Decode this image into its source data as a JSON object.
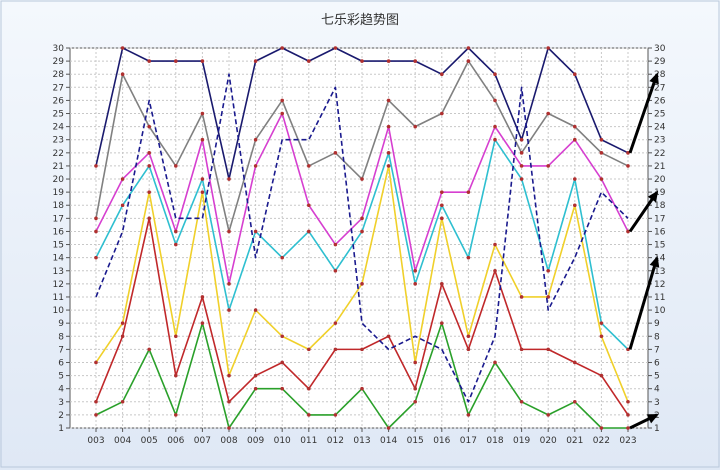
{
  "chart_data": {
    "type": "line",
    "title": "七乐彩趋势图",
    "xlabel": "",
    "ylabel": "",
    "categories": [
      "003",
      "004",
      "005",
      "006",
      "007",
      "008",
      "009",
      "010",
      "011",
      "012",
      "013",
      "014",
      "015",
      "016",
      "017",
      "018",
      "019",
      "020",
      "021",
      "022",
      "023"
    ],
    "ylim": [
      1,
      30
    ],
    "y_ticks": [
      1,
      2,
      3,
      4,
      5,
      6,
      7,
      8,
      9,
      10,
      11,
      12,
      13,
      14,
      15,
      16,
      17,
      18,
      19,
      20,
      21,
      22,
      23,
      24,
      25,
      26,
      27,
      28,
      29,
      30
    ],
    "grid": true,
    "legend": "none",
    "series": [
      {
        "color": "#1a1a6e",
        "dash": false,
        "values": [
          21,
          30,
          29,
          29,
          29,
          20,
          29,
          30,
          29,
          30,
          29,
          29,
          29,
          28,
          30,
          28,
          23,
          30,
          28,
          23,
          22
        ]
      },
      {
        "color": "#808080",
        "dash": false,
        "values": [
          17,
          28,
          24,
          21,
          25,
          16,
          23,
          26,
          21,
          22,
          20,
          26,
          24,
          25,
          29,
          26,
          22,
          25,
          24,
          22,
          21
        ]
      },
      {
        "color": "#d63fd0",
        "dash": false,
        "values": [
          16,
          20,
          22,
          16,
          23,
          12,
          21,
          25,
          18,
          15,
          17,
          24,
          13,
          19,
          19,
          24,
          21,
          21,
          23,
          20,
          16
        ]
      },
      {
        "color": "#2ebfd0",
        "dash": false,
        "values": [
          14,
          18,
          21,
          15,
          20,
          10,
          16,
          14,
          16,
          13,
          16,
          22,
          12,
          18,
          14,
          23,
          20,
          13,
          20,
          9,
          7
        ]
      },
      {
        "color": "#f0d02a",
        "dash": false,
        "values": [
          6,
          9,
          19,
          8,
          19,
          5,
          10,
          8,
          7,
          9,
          12,
          21,
          6,
          17,
          8,
          15,
          11,
          11,
          18,
          8,
          3
        ]
      },
      {
        "color": "#c0282a",
        "dash": false,
        "values": [
          3,
          8,
          17,
          5,
          11,
          3,
          5,
          6,
          4,
          7,
          7,
          8,
          4,
          12,
          7,
          13,
          7,
          7,
          6,
          5,
          2
        ]
      },
      {
        "color": "#2aa02a",
        "dash": false,
        "values": [
          2,
          3,
          7,
          2,
          9,
          1,
          4,
          4,
          2,
          2,
          4,
          1,
          3,
          9,
          2,
          6,
          3,
          2,
          3,
          1,
          1
        ]
      },
      {
        "color": "#1a1a8e",
        "dash": true,
        "values": [
          11,
          16,
          26,
          17,
          17,
          28,
          14,
          23,
          23,
          27,
          9,
          7,
          8,
          7,
          3,
          8,
          27,
          10,
          14,
          19,
          17
        ]
      }
    ],
    "annotations": [
      {
        "type": "arrow",
        "from": 22,
        "to": 28
      },
      {
        "type": "arrow",
        "from": 16,
        "to": 19
      },
      {
        "type": "arrow",
        "from": 7,
        "to": 14
      },
      {
        "type": "arrow",
        "from": 1,
        "to": 2
      }
    ]
  }
}
